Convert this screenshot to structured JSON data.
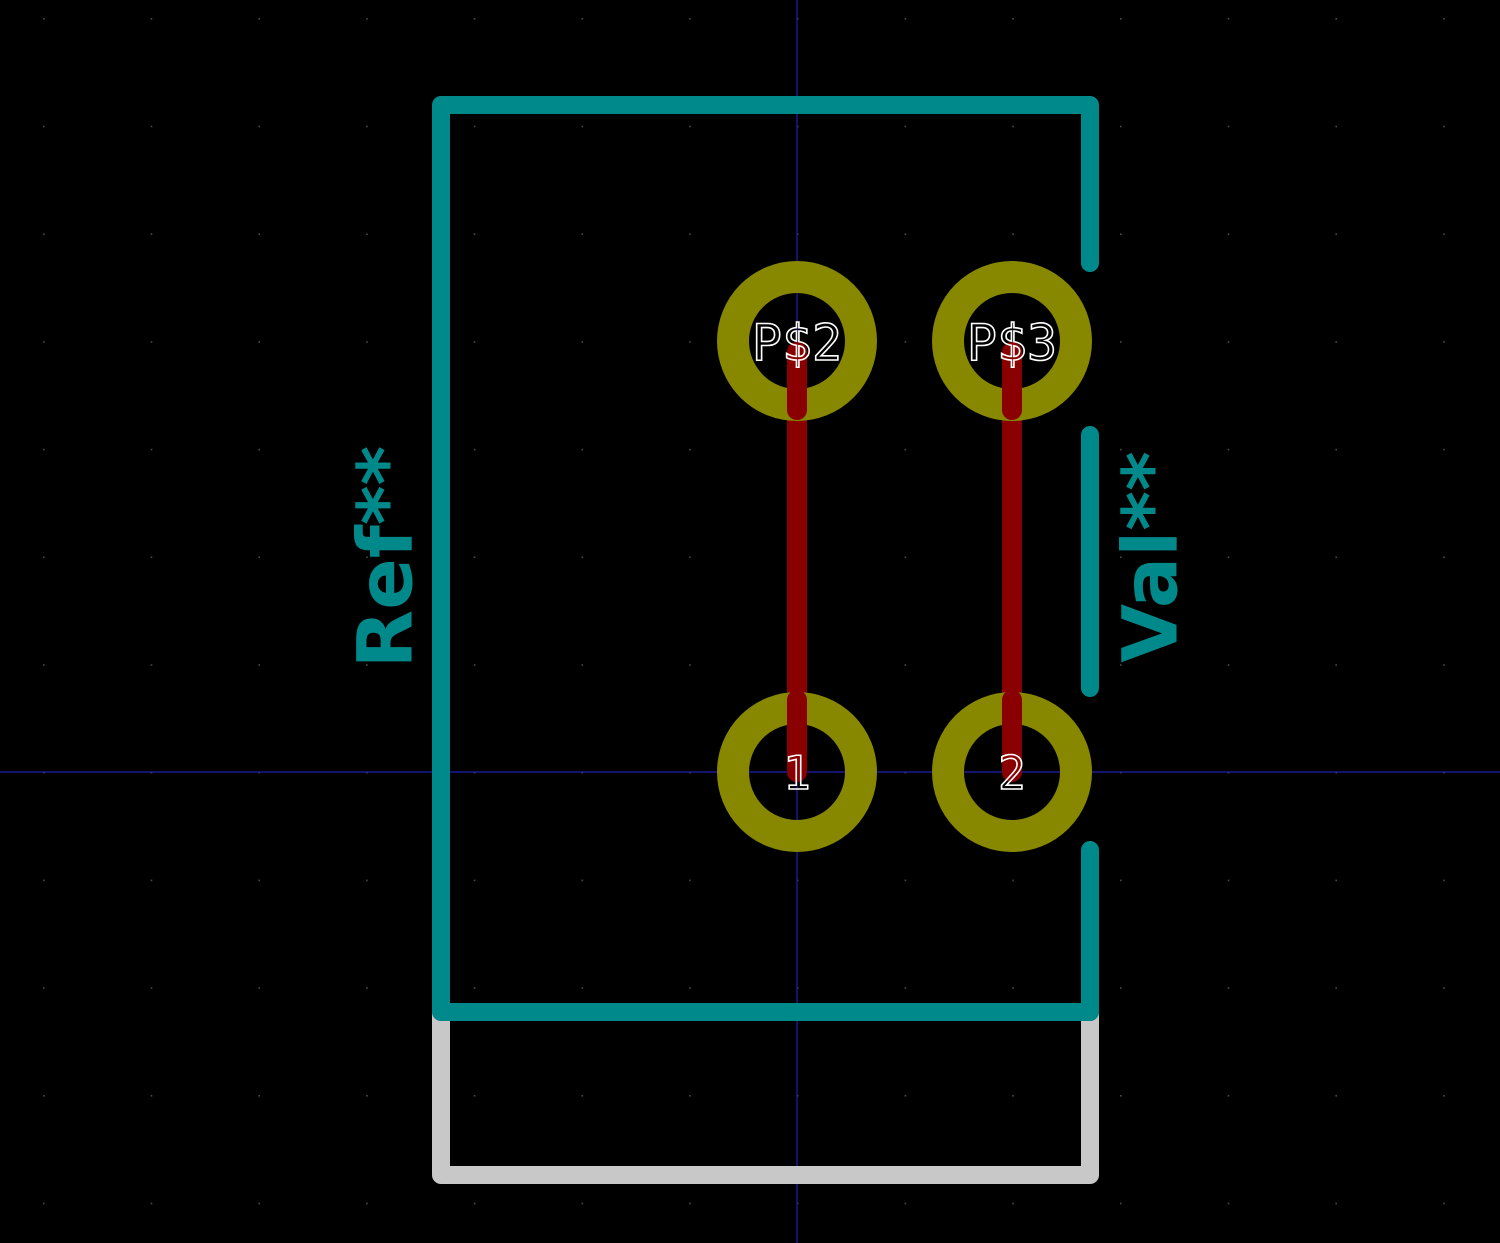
{
  "colors": {
    "background": "#000000",
    "grid_dot": "#4a4a4a",
    "crosshair": "#1f1fb3",
    "silkscreen": "#00898a",
    "fab_outline": "#c8c8c8",
    "pad_ring": "#878700",
    "pad_drill": "#000000",
    "track": "#8a0000",
    "pad_text": "#ffffff"
  },
  "footprint": {
    "reference": "Ref**",
    "value": "Val**"
  },
  "pads": [
    {
      "id": "pad-ps2",
      "label": "P$2"
    },
    {
      "id": "pad-ps3",
      "label": "P$3"
    },
    {
      "id": "pad-1",
      "label": "1"
    },
    {
      "id": "pad-2",
      "label": "2"
    }
  ],
  "tracks": [
    {
      "id": "track-left",
      "from": "P$2",
      "to": "1"
    },
    {
      "id": "track-right",
      "from": "P$3",
      "to": "2"
    }
  ]
}
